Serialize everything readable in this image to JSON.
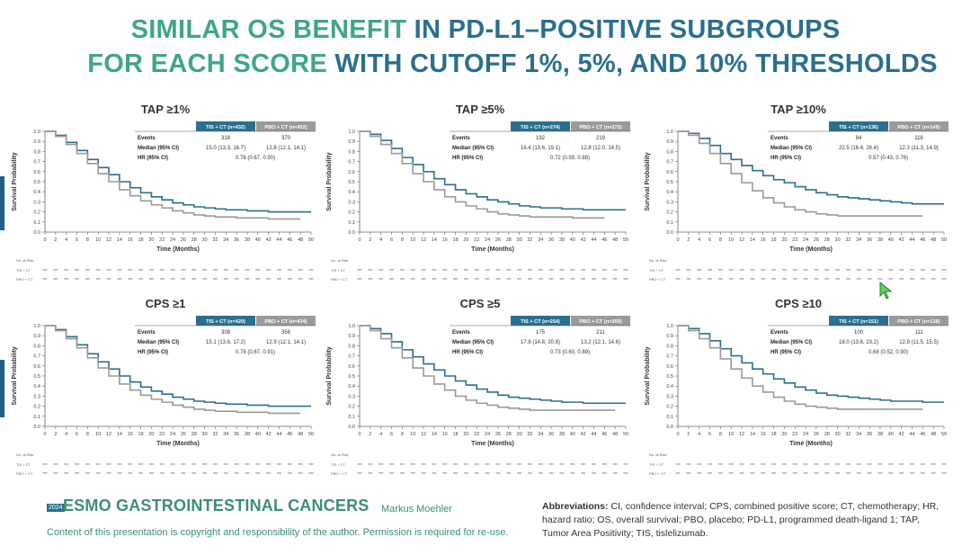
{
  "title": {
    "line1_part1": "SIMILAR OS BENEFIT ",
    "line1_part2": "IN PD-L1–POSITIVE SUBGROUPS",
    "line2_part1": "FOR EACH SCORE ",
    "line2_part2": "WITH CUTOFF 1%, 5%, AND 10% THRESHOLDS"
  },
  "colors": {
    "tis": "#2a6f8f",
    "pbo": "#9a9a9a",
    "title_teal": "#3fa58c",
    "title_blue": "#2a6f8f"
  },
  "axis": {
    "ylabel": "Survival Probability",
    "xlabel": "Time (Months)",
    "yticks": [
      "0.0",
      "0.1",
      "0.2",
      "0.3",
      "0.4",
      "0.5",
      "0.6",
      "0.7",
      "0.8",
      "0.9",
      "1.0"
    ],
    "xticks": [
      0,
      2,
      4,
      6,
      8,
      10,
      12,
      14,
      16,
      18,
      20,
      22,
      24,
      26,
      28,
      30,
      32,
      34,
      36,
      38,
      40,
      42,
      44,
      46,
      48,
      50
    ],
    "risk_header": "No. at Risk",
    "risk_tis": "TIS + CT",
    "risk_pbo": "PBO + CT"
  },
  "table_labels": {
    "events": "Events",
    "median": "Median (95% CI)",
    "hr": "HR (95% CI)"
  },
  "chart_data": [
    {
      "type": "line",
      "title": "TAP ≥1%",
      "xlabel": "Time (Months)",
      "ylabel": "Survival Probability",
      "xlim": [
        0,
        50
      ],
      "ylim": [
        0,
        1
      ],
      "tis_label": "TIS + CT (n=432)",
      "pbo_label": "PBO + CT (n=453)",
      "tis_events": "318",
      "pbo_events": "370",
      "tis_median": "15.0 (13.3, 16.7)",
      "pbo_median": "12.8 (12.1, 14.1)",
      "hr": "0.78 (0.67, 0.90)",
      "series": [
        {
          "name": "TIS + CT",
          "x": [
            0,
            2,
            4,
            6,
            8,
            10,
            12,
            14,
            16,
            18,
            20,
            22,
            24,
            26,
            28,
            30,
            32,
            34,
            36,
            38,
            40,
            42,
            44,
            46,
            48,
            50
          ],
          "y": [
            1.0,
            0.96,
            0.89,
            0.81,
            0.72,
            0.64,
            0.57,
            0.5,
            0.44,
            0.39,
            0.35,
            0.32,
            0.29,
            0.27,
            0.25,
            0.24,
            0.23,
            0.22,
            0.22,
            0.21,
            0.21,
            0.2,
            0.2,
            0.2,
            0.2,
            0.2
          ]
        },
        {
          "name": "PBO + CT",
          "x": [
            0,
            2,
            4,
            6,
            8,
            10,
            12,
            14,
            16,
            18,
            20,
            22,
            24,
            26,
            28,
            30,
            32,
            34,
            36,
            38,
            40,
            42,
            44,
            46,
            48
          ],
          "y": [
            1.0,
            0.95,
            0.87,
            0.78,
            0.68,
            0.58,
            0.5,
            0.42,
            0.36,
            0.31,
            0.27,
            0.24,
            0.21,
            0.19,
            0.17,
            0.16,
            0.15,
            0.15,
            0.14,
            0.14,
            0.14,
            0.13,
            0.13,
            0.13,
            0.13
          ]
        }
      ]
    },
    {
      "type": "line",
      "title": "TAP ≥5%",
      "xlabel": "Time (Months)",
      "ylabel": "Survival Probability",
      "xlim": [
        0,
        50
      ],
      "ylim": [
        0,
        1
      ],
      "tis_label": "TIS + CT (n=274)",
      "pbo_label": "PBO + CT (n=272)",
      "tis_events": "192",
      "pbo_events": "219",
      "tis_median": "16.4 (13.6, 19.1)",
      "pbo_median": "12.8 (12.0, 14.5)",
      "hr": "0.72 (0.59, 0.88)",
      "series": [
        {
          "name": "TIS + CT",
          "x": [
            0,
            2,
            4,
            6,
            8,
            10,
            12,
            14,
            16,
            18,
            20,
            22,
            24,
            26,
            28,
            30,
            32,
            34,
            36,
            38,
            40,
            42,
            44,
            46,
            48,
            50
          ],
          "y": [
            1.0,
            0.97,
            0.91,
            0.83,
            0.74,
            0.67,
            0.6,
            0.53,
            0.47,
            0.42,
            0.38,
            0.35,
            0.32,
            0.3,
            0.28,
            0.26,
            0.25,
            0.24,
            0.24,
            0.23,
            0.23,
            0.22,
            0.22,
            0.22,
            0.22,
            0.22
          ]
        },
        {
          "name": "PBO + CT",
          "x": [
            0,
            2,
            4,
            6,
            8,
            10,
            12,
            14,
            16,
            18,
            20,
            22,
            24,
            26,
            28,
            30,
            32,
            34,
            36,
            38,
            40,
            42,
            44,
            46
          ],
          "y": [
            1.0,
            0.95,
            0.87,
            0.78,
            0.68,
            0.58,
            0.5,
            0.42,
            0.35,
            0.3,
            0.26,
            0.23,
            0.2,
            0.18,
            0.17,
            0.16,
            0.15,
            0.15,
            0.15,
            0.15,
            0.14,
            0.14,
            0.14,
            0.14
          ]
        }
      ]
    },
    {
      "type": "line",
      "title": "TAP ≥10%",
      "xlabel": "Time (Months)",
      "ylabel": "Survival Probability",
      "xlim": [
        0,
        50
      ],
      "ylim": [
        0,
        1
      ],
      "tis_label": "TIS + CT (n=136)",
      "pbo_label": "PBO + CT (n=145)",
      "tis_events": "84",
      "pbo_events": "118",
      "tis_median": "22.5 (16.4, 26.4)",
      "pbo_median": "12.3 (11.3, 14.9)",
      "hr": "0.57 (0.43, 0.76)",
      "series": [
        {
          "name": "TIS + CT",
          "x": [
            0,
            2,
            4,
            6,
            8,
            10,
            12,
            14,
            16,
            18,
            20,
            22,
            24,
            26,
            28,
            30,
            32,
            34,
            36,
            38,
            40,
            42,
            44,
            46,
            48,
            50
          ],
          "y": [
            1.0,
            0.98,
            0.93,
            0.86,
            0.78,
            0.72,
            0.66,
            0.61,
            0.56,
            0.52,
            0.49,
            0.45,
            0.42,
            0.39,
            0.37,
            0.35,
            0.34,
            0.33,
            0.32,
            0.31,
            0.3,
            0.29,
            0.28,
            0.28,
            0.28,
            0.28
          ]
        },
        {
          "name": "PBO + CT",
          "x": [
            0,
            2,
            4,
            6,
            8,
            10,
            12,
            14,
            16,
            18,
            20,
            22,
            24,
            26,
            28,
            30,
            32,
            34,
            36,
            38,
            40,
            42,
            44,
            46
          ],
          "y": [
            1.0,
            0.96,
            0.88,
            0.78,
            0.68,
            0.58,
            0.49,
            0.41,
            0.34,
            0.29,
            0.25,
            0.22,
            0.2,
            0.18,
            0.17,
            0.16,
            0.16,
            0.16,
            0.16,
            0.16,
            0.16,
            0.16,
            0.16,
            0.16
          ]
        }
      ]
    },
    {
      "type": "line",
      "title": "CPS ≥1",
      "xlabel": "Time (Months)",
      "ylabel": "Survival Probability",
      "xlim": [
        0,
        50
      ],
      "ylim": [
        0,
        1
      ],
      "tis_label": "TIS + CT (n=420)",
      "pbo_label": "PBO + CT (n=434)",
      "tis_events": "308",
      "pbo_events": "356",
      "tis_median": "15.1 (13.6, 17.2)",
      "pbo_median": "12.9 (12.1, 14.1)",
      "hr": "0.78 (0.67, 0.91)",
      "series": [
        {
          "name": "TIS + CT",
          "x": [
            0,
            2,
            4,
            6,
            8,
            10,
            12,
            14,
            16,
            18,
            20,
            22,
            24,
            26,
            28,
            30,
            32,
            34,
            36,
            38,
            40,
            42,
            44,
            46,
            48,
            50
          ],
          "y": [
            1.0,
            0.96,
            0.89,
            0.81,
            0.72,
            0.64,
            0.57,
            0.5,
            0.44,
            0.39,
            0.35,
            0.32,
            0.29,
            0.27,
            0.25,
            0.24,
            0.23,
            0.22,
            0.22,
            0.21,
            0.21,
            0.2,
            0.2,
            0.2,
            0.2,
            0.2
          ]
        },
        {
          "name": "PBO + CT",
          "x": [
            0,
            2,
            4,
            6,
            8,
            10,
            12,
            14,
            16,
            18,
            20,
            22,
            24,
            26,
            28,
            30,
            32,
            34,
            36,
            38,
            40,
            42,
            44,
            46,
            48
          ],
          "y": [
            1.0,
            0.95,
            0.87,
            0.78,
            0.68,
            0.58,
            0.5,
            0.42,
            0.36,
            0.31,
            0.27,
            0.24,
            0.21,
            0.19,
            0.17,
            0.16,
            0.15,
            0.15,
            0.14,
            0.14,
            0.14,
            0.13,
            0.13,
            0.13,
            0.13
          ]
        }
      ]
    },
    {
      "type": "line",
      "title": "CPS ≥5",
      "xlabel": "Time (Months)",
      "ylabel": "Survival Probability",
      "xlim": [
        0,
        50
      ],
      "ylim": [
        0,
        1
      ],
      "tis_label": "TIS + CT (n=254)",
      "pbo_label": "PBO + CT (n=269)",
      "tis_events": "175",
      "pbo_events": "211",
      "tis_median": "17.8 (14.8, 20.8)",
      "pbo_median": "13.2 (12.1, 14.6)",
      "hr": "0.73 (0.60, 0.89)",
      "series": [
        {
          "name": "TIS + CT",
          "x": [
            0,
            2,
            4,
            6,
            8,
            10,
            12,
            14,
            16,
            18,
            20,
            22,
            24,
            26,
            28,
            30,
            32,
            34,
            36,
            38,
            40,
            42,
            44,
            46,
            48,
            50
          ],
          "y": [
            1.0,
            0.97,
            0.92,
            0.84,
            0.76,
            0.69,
            0.62,
            0.56,
            0.5,
            0.45,
            0.41,
            0.37,
            0.34,
            0.31,
            0.29,
            0.28,
            0.27,
            0.26,
            0.25,
            0.24,
            0.24,
            0.23,
            0.23,
            0.23,
            0.23,
            0.23
          ]
        },
        {
          "name": "PBO + CT",
          "x": [
            0,
            2,
            4,
            6,
            8,
            10,
            12,
            14,
            16,
            18,
            20,
            22,
            24,
            26,
            28,
            30,
            32,
            34,
            36,
            38,
            40,
            42,
            44,
            46,
            48
          ],
          "y": [
            1.0,
            0.95,
            0.87,
            0.78,
            0.68,
            0.58,
            0.5,
            0.42,
            0.36,
            0.3,
            0.26,
            0.23,
            0.21,
            0.19,
            0.18,
            0.17,
            0.16,
            0.16,
            0.16,
            0.16,
            0.16,
            0.16,
            0.16,
            0.16,
            0.16
          ]
        }
      ]
    },
    {
      "type": "line",
      "title": "CPS ≥10",
      "xlabel": "Time (Months)",
      "ylabel": "Survival Probability",
      "xlim": [
        0,
        50
      ],
      "ylim": [
        0,
        1
      ],
      "tis_label": "TIS + CT (n=151)",
      "pbo_label": "PBO + CT (n=138)",
      "tis_events": "100",
      "pbo_events": "111",
      "tis_median": "18.0 (13.6, 23.2)",
      "pbo_median": "12.9 (11.5, 15.5)",
      "hr": "0.68 (0.52, 0.90)",
      "series": [
        {
          "name": "TIS + CT",
          "x": [
            0,
            2,
            4,
            6,
            8,
            10,
            12,
            14,
            16,
            18,
            20,
            22,
            24,
            26,
            28,
            30,
            32,
            34,
            36,
            38,
            40,
            42,
            44,
            46,
            48,
            50
          ],
          "y": [
            1.0,
            0.97,
            0.92,
            0.85,
            0.77,
            0.7,
            0.63,
            0.57,
            0.52,
            0.47,
            0.43,
            0.39,
            0.36,
            0.33,
            0.31,
            0.3,
            0.29,
            0.28,
            0.27,
            0.26,
            0.25,
            0.25,
            0.25,
            0.24,
            0.24,
            0.24
          ]
        },
        {
          "name": "PBO + CT",
          "x": [
            0,
            2,
            4,
            6,
            8,
            10,
            12,
            14,
            16,
            18,
            20,
            22,
            24,
            26,
            28,
            30,
            32,
            34,
            36,
            38,
            40,
            42,
            44,
            46
          ],
          "y": [
            1.0,
            0.95,
            0.87,
            0.78,
            0.67,
            0.57,
            0.48,
            0.4,
            0.34,
            0.29,
            0.25,
            0.22,
            0.2,
            0.19,
            0.18,
            0.17,
            0.17,
            0.17,
            0.17,
            0.17,
            0.17,
            0.17,
            0.17,
            0.17
          ]
        }
      ]
    }
  ],
  "footer": {
    "year": "2024",
    "logo": "ESMO GASTROINTESTINAL CANCERS",
    "author": "Markus Moehler",
    "copyright": "Content of this presentation is copyright and responsibility of the author. Permission is required for re-use.",
    "abbr_label": "Abbreviations:",
    "abbr_text": " CI, confidence interval; CPS, combined positive score; CT, chemotherapy; HR, hazard ratio; OS, overall survival; PBO, placebo; PD-L1, programmed death-ligand 1; TAP, Tumor Area Positivity; TIS, tislelizumab."
  }
}
